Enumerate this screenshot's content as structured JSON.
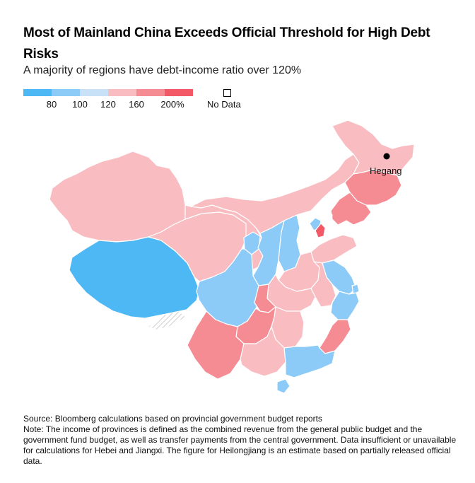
{
  "title": "Most of Mainland China Exceeds Official Threshold for High Debt Risks",
  "subtitle": "A majority of regions have debt-income ratio over 120%",
  "legend": {
    "ticks": [
      "80",
      "100",
      "120",
      "160",
      "200%"
    ],
    "no_data": "No Data",
    "colors": [
      "#4db8f4",
      "#8ccaf7",
      "#c8e1f7",
      "#f9bcc1",
      "#f58b93",
      "#f25866"
    ]
  },
  "map": {
    "marker_label": "Hegang",
    "colors": {
      "lt80": "#4db8f4",
      "b80_100": "#8ccaf7",
      "b100_120": "#c8e1f7",
      "b120_160": "#f9bcc1",
      "b160_200": "#f58b93",
      "gt200": "#f25866",
      "no_data": "#ffffff",
      "border": "#ffffff"
    }
  },
  "footer": {
    "source": "Source: Bloomberg calculations based on provincial government budget reports",
    "note": "Note: The income of provinces is defined as the combined revenue from the general public budget and the government fund budget, as well as transfer payments from the central government. Data insufficient or unavailable for calculations for Hebei and Jiangxi. The figure for Heilongjiang is an estimate based on partially released official data."
  }
}
